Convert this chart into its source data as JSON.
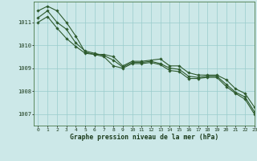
{
  "title": "Graphe pression niveau de la mer (hPa)",
  "xlabel": "Graphe pression niveau de la mer (hPa)",
  "xlim": [
    -0.5,
    23
  ],
  "ylim": [
    1006.5,
    1011.9
  ],
  "yticks": [
    1007,
    1008,
    1009,
    1010,
    1011
  ],
  "xticks": [
    0,
    1,
    2,
    3,
    4,
    5,
    6,
    7,
    8,
    9,
    10,
    11,
    12,
    13,
    14,
    15,
    16,
    17,
    18,
    19,
    20,
    21,
    22,
    23
  ],
  "background_color": "#cce8e8",
  "grid_color": "#99cccc",
  "line_color": "#2d5a2d",
  "series": [
    [
      1011.5,
      1011.7,
      1011.5,
      1011.0,
      1010.4,
      1009.7,
      1009.6,
      1009.6,
      1009.5,
      1009.1,
      1009.3,
      1009.3,
      1009.35,
      1009.4,
      1009.1,
      1009.1,
      1008.8,
      1008.7,
      1008.7,
      1008.7,
      1008.5,
      1008.1,
      1007.9,
      1007.3
    ],
    [
      1011.2,
      1011.5,
      1011.0,
      1010.7,
      1010.1,
      1009.75,
      1009.65,
      1009.55,
      1009.35,
      1009.05,
      1009.25,
      1009.25,
      1009.3,
      1009.2,
      1009.0,
      1008.95,
      1008.65,
      1008.6,
      1008.65,
      1008.65,
      1008.3,
      1007.95,
      1007.75,
      1007.1
    ],
    [
      1011.0,
      1011.25,
      1010.75,
      1010.3,
      1009.95,
      1009.65,
      1009.6,
      1009.5,
      1009.1,
      1009.0,
      1009.2,
      1009.2,
      1009.25,
      1009.15,
      1008.9,
      1008.85,
      1008.55,
      1008.55,
      1008.6,
      1008.6,
      1008.2,
      1007.9,
      1007.65,
      1007.0
    ]
  ]
}
